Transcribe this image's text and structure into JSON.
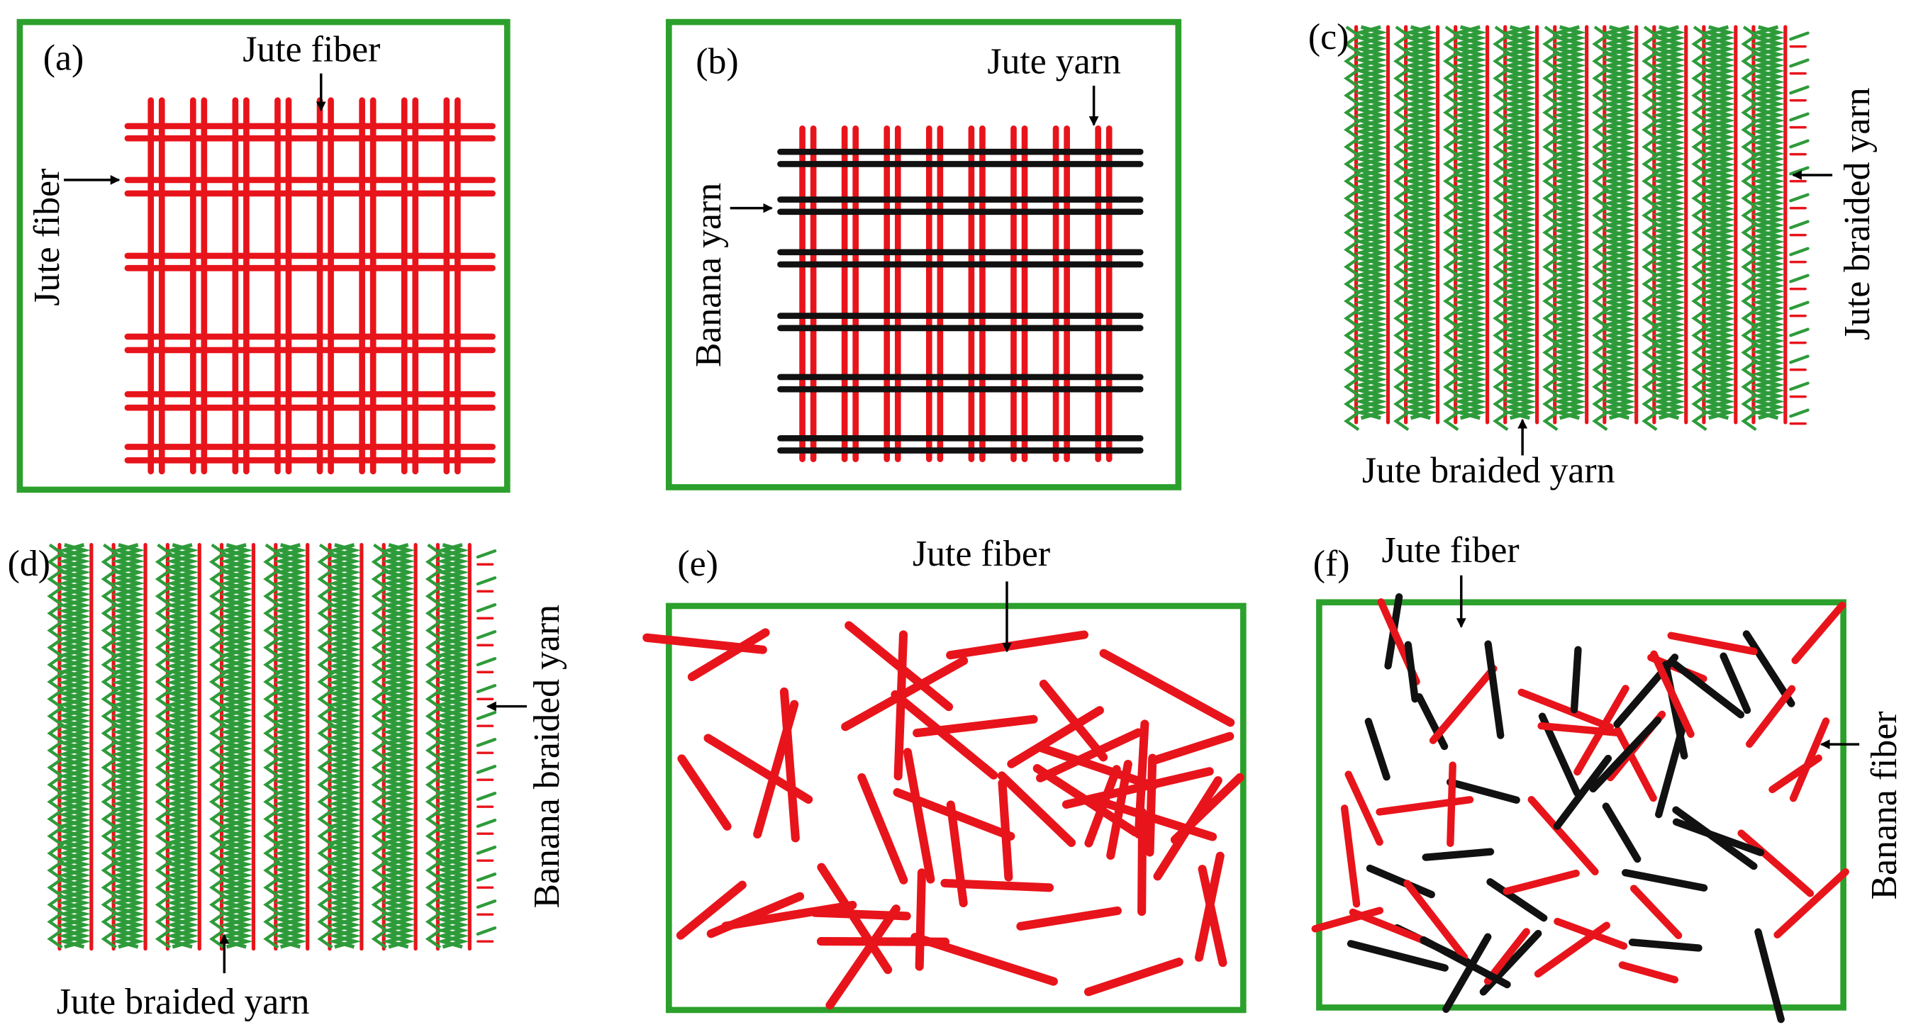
{
  "colors": {
    "frame": "#2ca02c",
    "jute": "#e8141b",
    "banana": "#111111",
    "braid": "#2e9b3a"
  },
  "panels": {
    "a": {
      "tag": "(a)",
      "label_top": "Jute fiber",
      "label_side": "Jute fiber"
    },
    "b": {
      "tag": "(b)",
      "label_top": "Jute yarn",
      "label_side": "Banana yarn"
    },
    "c": {
      "tag": "(c)",
      "label_side": "Jute braided yarn",
      "label_bottom": "Jute braided yarn"
    },
    "d": {
      "tag": "(d)",
      "label_side": "Banana braided yarn",
      "label_bottom": "Jute braided yarn"
    },
    "e": {
      "tag": "(e)",
      "label_top": "Jute fiber"
    },
    "f": {
      "tag": "(f)",
      "label_top": "Jute fiber",
      "label_side": "Banana fiber"
    }
  }
}
